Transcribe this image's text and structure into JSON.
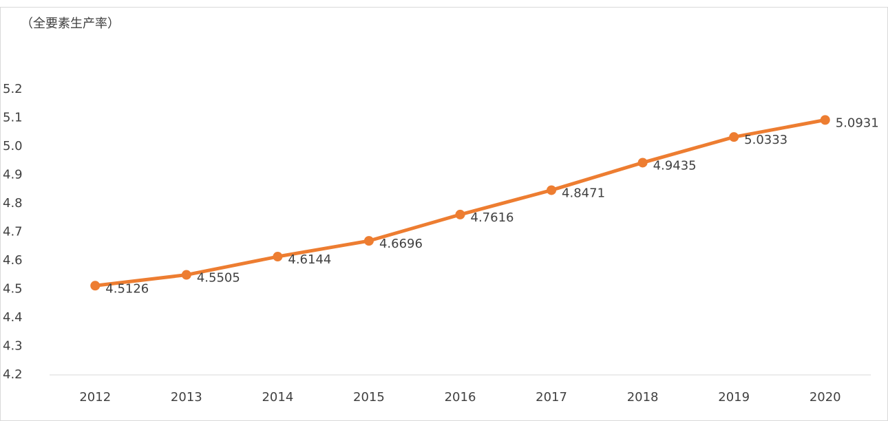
{
  "chart_data": {
    "type": "line",
    "y_axis_label": "（全要素生产率）",
    "categories": [
      "2012",
      "2013",
      "2014",
      "2015",
      "2016",
      "2017",
      "2018",
      "2019",
      "2020"
    ],
    "series": [
      {
        "name": "全要素生产率",
        "color": "#ED7D31",
        "values": [
          4.5126,
          4.5505,
          4.6144,
          4.6696,
          4.7616,
          4.8471,
          4.9435,
          5.0333,
          5.0931
        ]
      }
    ],
    "ylim": [
      4.2,
      5.2
    ],
    "yticks": [
      4.2,
      4.3,
      4.4,
      4.5,
      4.6,
      4.7,
      4.8,
      4.9,
      {
        "value": 5,
        "label": "5.0"
      },
      5.1,
      5.2
    ],
    "grid": false
  }
}
